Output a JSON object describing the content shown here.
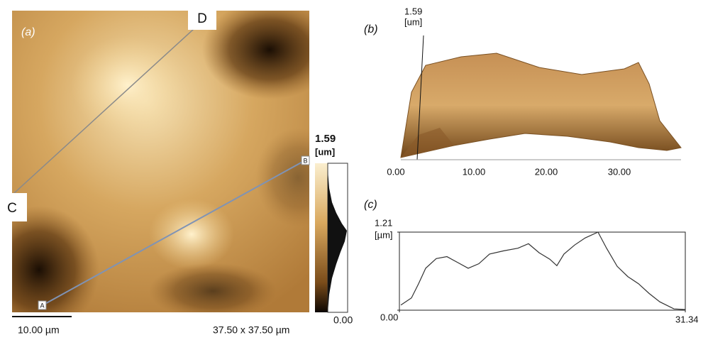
{
  "panel_a": {
    "label": "(a)",
    "marker_d": "D",
    "marker_c": "C",
    "marker_b": "B",
    "marker_a": "A",
    "colorbar_max": "1.59",
    "colorbar_unit": "[um]",
    "colorbar_min": "0.00",
    "scale_bar": "10.00 µm",
    "scan_size": "37.50 x 37.50 µm"
  },
  "panel_b": {
    "label": "(b)",
    "z_max": "1.59",
    "z_unit": "[um]",
    "x_ticks": [
      "0.00",
      "10.00",
      "20.00",
      "30.00"
    ]
  },
  "panel_c": {
    "label": "(c)",
    "y_unit": "[µm]",
    "chart_data": {
      "type": "line",
      "xlim": [
        0,
        31.34
      ],
      "ylim": [
        0,
        1.21
      ],
      "xticks": [
        {
          "value": 0,
          "label": "0.00"
        },
        31.34
      ],
      "yticks": [
        {
          "value": 0,
          "label": "0.00"
        },
        1.21
      ],
      "color": "#333333",
      "x": [
        0.16,
        1.32,
        2.1,
        2.88,
        4.04,
        5.21,
        6.38,
        7.54,
        8.71,
        9.88,
        11.43,
        12.99,
        14.15,
        15.32,
        16.49,
        17.26,
        18.04,
        19.21,
        20.37,
        21.77,
        22.71,
        23.87,
        25.04,
        26.21,
        27.37,
        28.54,
        30.1,
        31.34
      ],
      "values": [
        0.08,
        0.19,
        0.41,
        0.65,
        0.8,
        0.83,
        0.74,
        0.65,
        0.72,
        0.87,
        0.92,
        0.96,
        1.03,
        0.89,
        0.79,
        0.69,
        0.87,
        1.01,
        1.12,
        1.21,
        0.96,
        0.68,
        0.52,
        0.41,
        0.26,
        0.13,
        0.02,
        0.01
      ]
    }
  }
}
